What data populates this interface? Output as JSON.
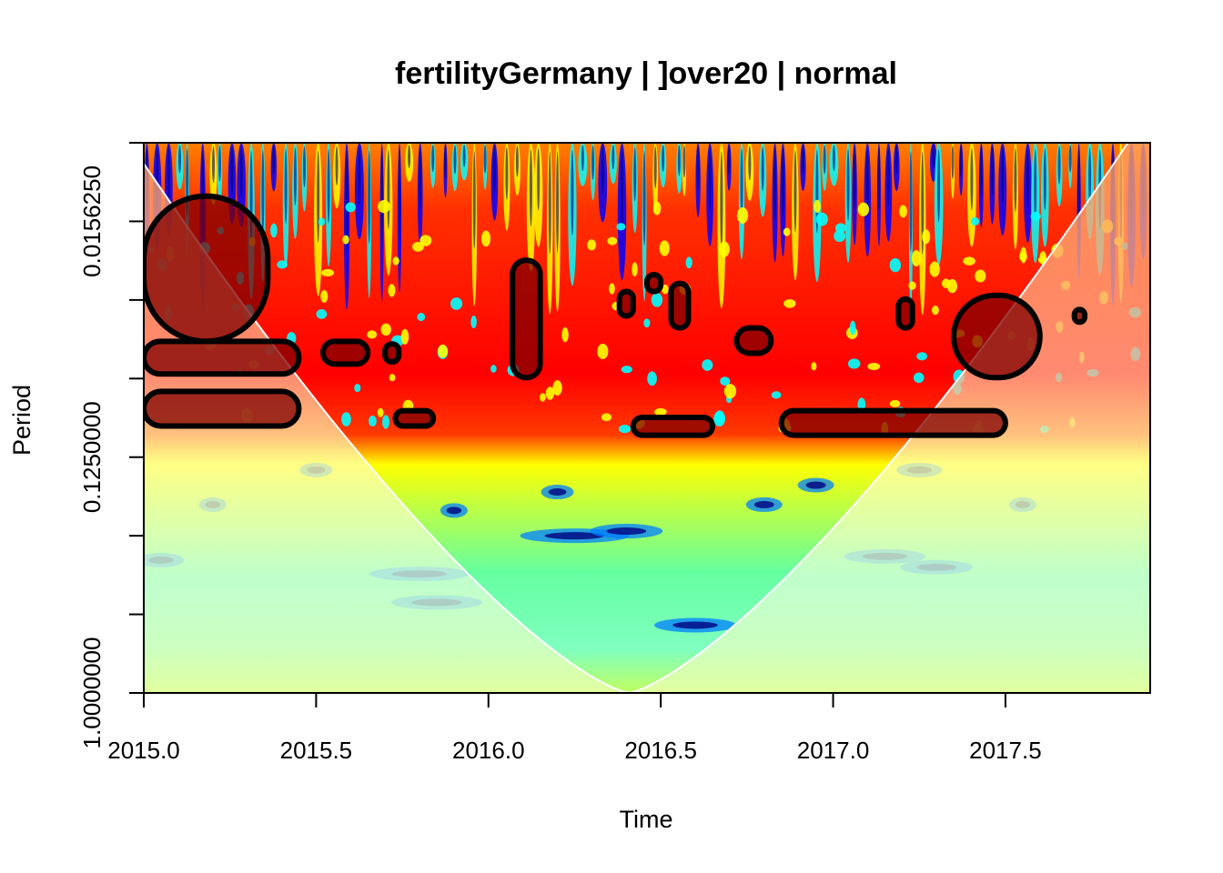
{
  "chart_data": {
    "type": "heatmap",
    "title": "fertilityGermany | ]over20 | normal",
    "xlabel": "Time",
    "ylabel": "Period",
    "x_ticks": [
      "2015.0",
      "2015.5",
      "2016.0",
      "2016.5",
      "2017.0",
      "2017.5"
    ],
    "x_tick_values": [
      2015.0,
      2015.5,
      2016.0,
      2016.5,
      2017.0,
      2017.5
    ],
    "xlim": [
      2015.0,
      2017.92
    ],
    "y_ticks": [
      "0.0156250",
      "0.1250000",
      "1.0000000"
    ],
    "y_tick_values": [
      0.015625,
      0.125,
      1.0
    ],
    "y_scale": "log2-reversed",
    "ylim": [
      0.0078125,
      1.0
    ],
    "colormap": [
      "#00007f",
      "#0000ff",
      "#007fff",
      "#00ffff",
      "#7fff7f",
      "#ffff00",
      "#ff7f00",
      "#ff0000",
      "#7f0000"
    ],
    "cone_of_influence_color": "#ffffff",
    "significance_contour_color": "#000000",
    "high_power_period_band": [
      0.0078125,
      0.11
    ],
    "significant_regions": [
      {
        "time": [
          2015.0,
          2015.36
        ],
        "period": [
          0.0125,
          0.045
        ]
      },
      {
        "time": [
          2015.0,
          2015.45
        ],
        "period": [
          0.045,
          0.06
        ]
      },
      {
        "time": [
          2015.0,
          2015.45
        ],
        "period": [
          0.07,
          0.095
        ]
      },
      {
        "time": [
          2015.52,
          2015.65
        ],
        "period": [
          0.045,
          0.055
        ]
      },
      {
        "time": [
          2015.7,
          2015.74
        ],
        "period": [
          0.046,
          0.054
        ]
      },
      {
        "time": [
          2015.73,
          2015.84
        ],
        "period": [
          0.083,
          0.095
        ]
      },
      {
        "time": [
          2016.07,
          2016.15
        ],
        "period": [
          0.022,
          0.062
        ]
      },
      {
        "time": [
          2016.38,
          2016.42
        ],
        "period": [
          0.029,
          0.036
        ]
      },
      {
        "time": [
          2016.46,
          2016.5
        ],
        "period": [
          0.025,
          0.029
        ]
      },
      {
        "time": [
          2016.53,
          2016.58
        ],
        "period": [
          0.027,
          0.04
        ]
      },
      {
        "time": [
          2016.42,
          2016.65
        ],
        "period": [
          0.088,
          0.103
        ]
      },
      {
        "time": [
          2016.72,
          2016.82
        ],
        "period": [
          0.04,
          0.05
        ]
      },
      {
        "time": [
          2017.19,
          2017.23
        ],
        "period": [
          0.031,
          0.04
        ]
      },
      {
        "time": [
          2016.85,
          2017.5
        ],
        "period": [
          0.083,
          0.103
        ]
      },
      {
        "time": [
          2017.35,
          2017.6
        ],
        "period": [
          0.03,
          0.062
        ]
      },
      {
        "time": [
          2017.7,
          2017.73
        ],
        "period": [
          0.034,
          0.038
        ]
      }
    ]
  }
}
